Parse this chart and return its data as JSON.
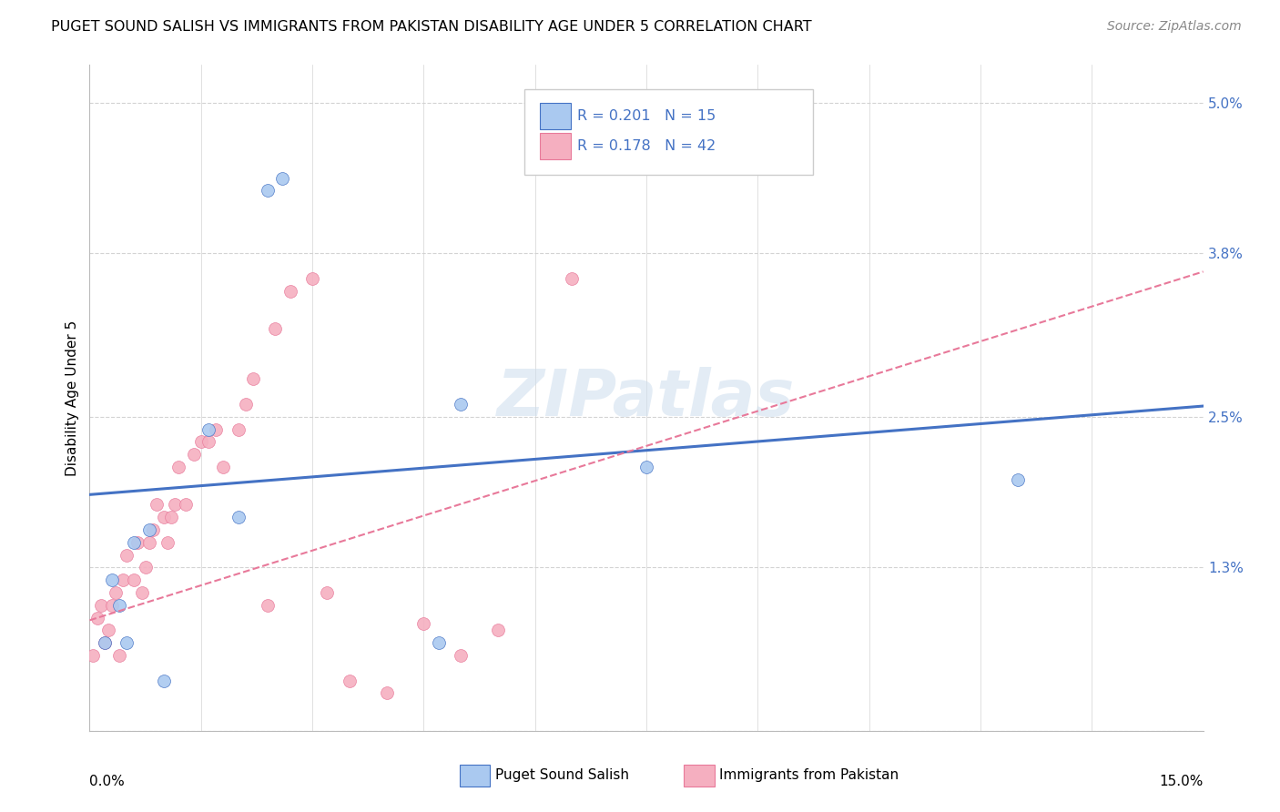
{
  "title": "PUGET SOUND SALISH VS IMMIGRANTS FROM PAKISTAN DISABILITY AGE UNDER 5 CORRELATION CHART",
  "source": "Source: ZipAtlas.com",
  "ylabel": "Disability Age Under 5",
  "xmin": 0.0,
  "xmax": 15.0,
  "ymin": 0.0,
  "ymax": 5.3,
  "ytick_vals": [
    0.0,
    1.3,
    2.5,
    3.8,
    5.0
  ],
  "ytick_labels": [
    "",
    "1.3%",
    "2.5%",
    "3.8%",
    "5.0%"
  ],
  "blue_scatter_x": [
    0.2,
    0.3,
    0.4,
    0.5,
    0.6,
    0.8,
    1.0,
    1.6,
    2.0,
    2.4,
    2.6,
    5.0,
    7.5,
    12.5,
    4.7
  ],
  "blue_scatter_y": [
    0.7,
    1.2,
    1.0,
    0.7,
    1.5,
    1.6,
    0.4,
    2.4,
    1.7,
    4.3,
    4.4,
    2.6,
    2.1,
    2.0,
    0.7
  ],
  "pink_scatter_x": [
    0.05,
    0.1,
    0.15,
    0.2,
    0.25,
    0.3,
    0.35,
    0.4,
    0.45,
    0.5,
    0.6,
    0.65,
    0.7,
    0.75,
    0.8,
    0.85,
    0.9,
    1.0,
    1.05,
    1.1,
    1.15,
    1.2,
    1.3,
    1.4,
    1.5,
    1.6,
    1.7,
    1.8,
    2.0,
    2.1,
    2.2,
    2.4,
    2.5,
    2.7,
    3.0,
    3.2,
    3.5,
    4.0,
    4.5,
    5.0,
    5.5,
    6.5
  ],
  "pink_scatter_y": [
    0.6,
    0.9,
    1.0,
    0.7,
    0.8,
    1.0,
    1.1,
    0.6,
    1.2,
    1.4,
    1.2,
    1.5,
    1.1,
    1.3,
    1.5,
    1.6,
    1.8,
    1.7,
    1.5,
    1.7,
    1.8,
    2.1,
    1.8,
    2.2,
    2.3,
    2.3,
    2.4,
    2.1,
    2.4,
    2.6,
    2.8,
    1.0,
    3.2,
    3.5,
    3.6,
    1.1,
    0.4,
    0.3,
    0.85,
    0.6,
    0.8,
    3.6
  ],
  "blue_color": "#aac9f0",
  "pink_color": "#f5afc0",
  "blue_line_color": "#4472c4",
  "pink_line_color": "#e8799a",
  "blue_line_intercept": 1.88,
  "blue_line_slope": 0.047,
  "pink_line_intercept": 0.88,
  "pink_line_slope": 0.185,
  "legend_r_blue": "R = 0.201",
  "legend_n_blue": "N = 15",
  "legend_r_pink": "R = 0.178",
  "legend_n_pink": "N = 42",
  "watermark": "ZIPatlas",
  "grid_color": "#d3d3d3",
  "scatter_size": 100
}
